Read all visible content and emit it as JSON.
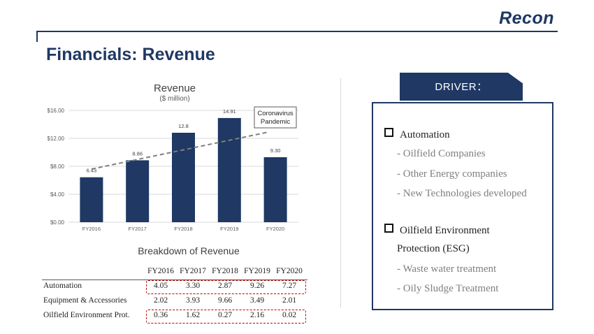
{
  "brand": "Recon",
  "page_title": "Financials: Revenue",
  "chart_data": {
    "type": "bar",
    "title": "Revenue",
    "subtitle": "($ million)",
    "categories": [
      "FY2016",
      "FY2017",
      "FY2018",
      "FY2019",
      "FY2020"
    ],
    "values": [
      6.43,
      8.86,
      12.8,
      14.91,
      9.3
    ],
    "value_labels": [
      "6.43",
      "8.86",
      "12.8",
      "14.91",
      "9.30"
    ],
    "y_ticks": [
      "$0.00",
      "$4.00",
      "$8.00",
      "$12.00",
      "$16.00"
    ],
    "y_tick_values": [
      0,
      4,
      8,
      12,
      16
    ],
    "ylim": [
      0,
      16
    ],
    "trendline": {
      "style": "dashed",
      "start": 7.6,
      "end": 12.9
    },
    "annotation": {
      "line1": "Coronavirus",
      "line2": "Pandemic"
    },
    "colors": {
      "bar": "#1f3864",
      "trend": "#7f7f7f",
      "grid": "#d9d9d9"
    }
  },
  "breakdown": {
    "title": "Breakdown of Revenue",
    "years": [
      "FY2016",
      "FY2017",
      "FY2018",
      "FY2019",
      "FY2020"
    ],
    "rows": [
      {
        "label": "Automation",
        "values": [
          "4.05",
          "3.30",
          "2.87",
          "9.26",
          "7.27"
        ]
      },
      {
        "label": "Equipment & Accessories",
        "values": [
          "2.02",
          "3.93",
          "9.66",
          "3.49",
          "2.01"
        ]
      },
      {
        "label": "Oilfield Environment Prot.",
        "values": [
          "0.36",
          "1.62",
          "0.27",
          "2.16",
          "0.02"
        ]
      }
    ]
  },
  "driver": {
    "tab_label": "DRIVER：",
    "items": [
      {
        "label": "Automation",
        "subs": [
          "- Oilfield Companies",
          "- Other Energy companies",
          "- New Technologies developed"
        ]
      },
      {
        "label_line1": "Oilfield Environment",
        "label_line2": "Protection (ESG)",
        "subs": [
          "- Waste water treatment",
          "- Oily Sludge Treatment"
        ]
      }
    ]
  },
  "colors": {
    "brand": "#1f3864",
    "highlight_dash": "#c00000"
  }
}
